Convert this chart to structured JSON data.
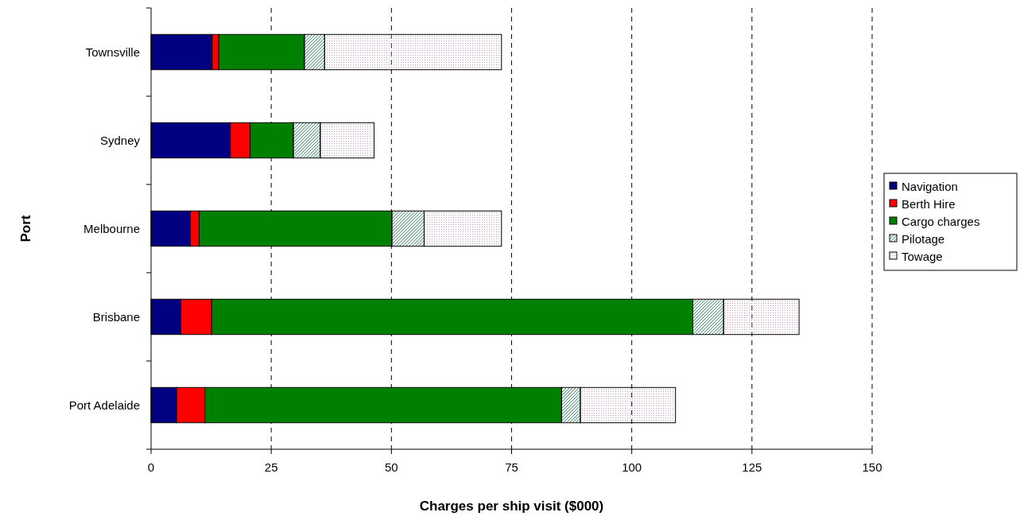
{
  "chart_data": {
    "type": "bar",
    "orientation": "horizontal",
    "stacked": true,
    "xlabel": "Charges per ship visit ($000)",
    "ylabel": "Port",
    "categories": [
      "Townsville",
      "Sydney",
      "Melbourne",
      "Brisbane",
      "Port Adelaide"
    ],
    "series": [
      {
        "name": "Navigation",
        "color": "#000080",
        "values": [
          12.7,
          16.5,
          8.2,
          6.2,
          5.3
        ]
      },
      {
        "name": "Berth Hire",
        "color": "#ff0000",
        "values": [
          1.4,
          4.1,
          1.8,
          6.4,
          5.9
        ]
      },
      {
        "name": "Cargo charges",
        "color": "#008000",
        "values": [
          17.8,
          9.0,
          40.1,
          100.1,
          74.2
        ]
      },
      {
        "name": "Pilotage",
        "color": "#339966",
        "values": [
          4.2,
          5.6,
          6.7,
          6.4,
          3.9
        ]
      },
      {
        "name": "Towage",
        "color": "#cc99cc",
        "values": [
          36.8,
          11.2,
          16.1,
          15.7,
          19.8
        ]
      }
    ],
    "xlim": [
      0,
      150
    ],
    "xticks": [
      0,
      25,
      50,
      75,
      100,
      125,
      150
    ],
    "grid": "x",
    "legend": "right"
  }
}
